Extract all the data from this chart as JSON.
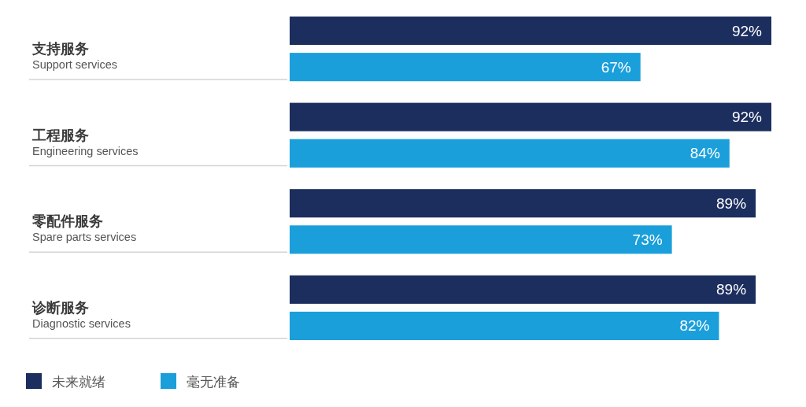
{
  "chart_data": {
    "type": "bar",
    "orientation": "horizontal",
    "tick_labels": "y",
    "legend": "bottom left",
    "categories": [
      "支持服务\nSupport services",
      "工程服务\nEngineering services",
      "零配件服务\nSpare parts services",
      "诊断服务\nDiagnostic services"
    ],
    "series": [
      {
        "name": "未来就绪",
        "color": "#1c2e5e",
        "values": [
          92,
          92,
          89,
          89
        ],
        "value_labels": [
          "92%",
          "92%",
          "89%",
          "89%"
        ]
      },
      {
        "name": "毫无准备",
        "color": "#1a9fdb",
        "values": [
          67,
          84,
          73,
          82
        ],
        "value_labels": [
          "67%",
          "84%",
          "73%",
          "82%"
        ]
      }
    ]
  }
}
